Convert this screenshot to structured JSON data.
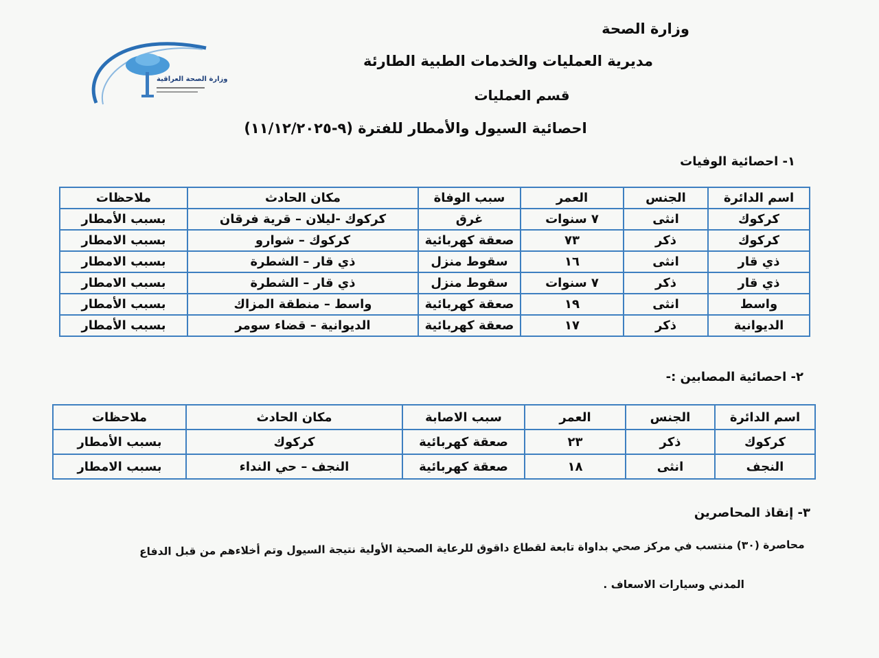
{
  "logo": {
    "text": "وزارة الصحة العراقية",
    "color": "#2a6fb5"
  },
  "header": {
    "ministry": "وزارة الصحة",
    "directorate": "مديرية العمليات والخدمات الطبية الطارئة",
    "department": "قسم العمليات",
    "title": "احصائية السيول والأمطار للفترة (٩-١١/١٢/٢٠٢٥)"
  },
  "deaths": {
    "heading": "١- احصائية الوفيات",
    "columns": [
      "اسم الدائرة",
      "الجنس",
      "العمر",
      "سبب الوفاة",
      "مكان الحادث",
      "ملاحظات"
    ],
    "rows": [
      [
        "كركوك",
        "انثى",
        "٧ سنوات",
        "غرق",
        "كركوك -ليلان – قرية فرقان",
        "بسبب الأمطار"
      ],
      [
        "كركوك",
        "ذكر",
        "٧٣",
        "صعقة كهربائية",
        "كركوك – شوارو",
        "بسبب الامطار"
      ],
      [
        "ذي قار",
        "انثى",
        "١٦",
        "سقوط منزل",
        "ذي قار – الشطرة",
        "بسبب الامطار"
      ],
      [
        "ذي قار",
        "ذكر",
        "٧ سنوات",
        "سقوط منزل",
        "ذي قار – الشطرة",
        "بسبب الامطار"
      ],
      [
        "واسط",
        "انثى",
        "١٩",
        "صعقة كهربائية",
        "واسط – منطقة المزاك",
        "بسبب الأمطار"
      ],
      [
        "الديوانية",
        "ذكر",
        "١٧",
        "صعقة كهربائية",
        "الديوانية – قضاء سومر",
        "بسبب الأمطار"
      ]
    ]
  },
  "injuries": {
    "heading": "٢- احصائية المصابين :-",
    "columns": [
      "اسم الدائرة",
      "الجنس",
      "العمر",
      "سبب الاصابة",
      "مكان الحادث",
      "ملاحظات"
    ],
    "rows": [
      [
        "كركوك",
        "ذكر",
        "٢٣",
        "صعقة كهربائية",
        "كركوك",
        "بسبب الأمطار"
      ],
      [
        "النجف",
        "انثى",
        "١٨",
        "صعقة كهربائية",
        "النجف – حي النداء",
        "بسبب الامطار"
      ]
    ]
  },
  "rescue": {
    "heading": "٣- إنقاذ المحاصرين",
    "line1": "محاصرة (٣٠) منتسب في مركز صحي بداواة تابعة لقطاع داقوق للرعاية الصحية الأولية نتيجة السيول وتم أخلاءهم من قبل الدفاع",
    "line2": "المدني وسيارات الاسعاف ."
  }
}
